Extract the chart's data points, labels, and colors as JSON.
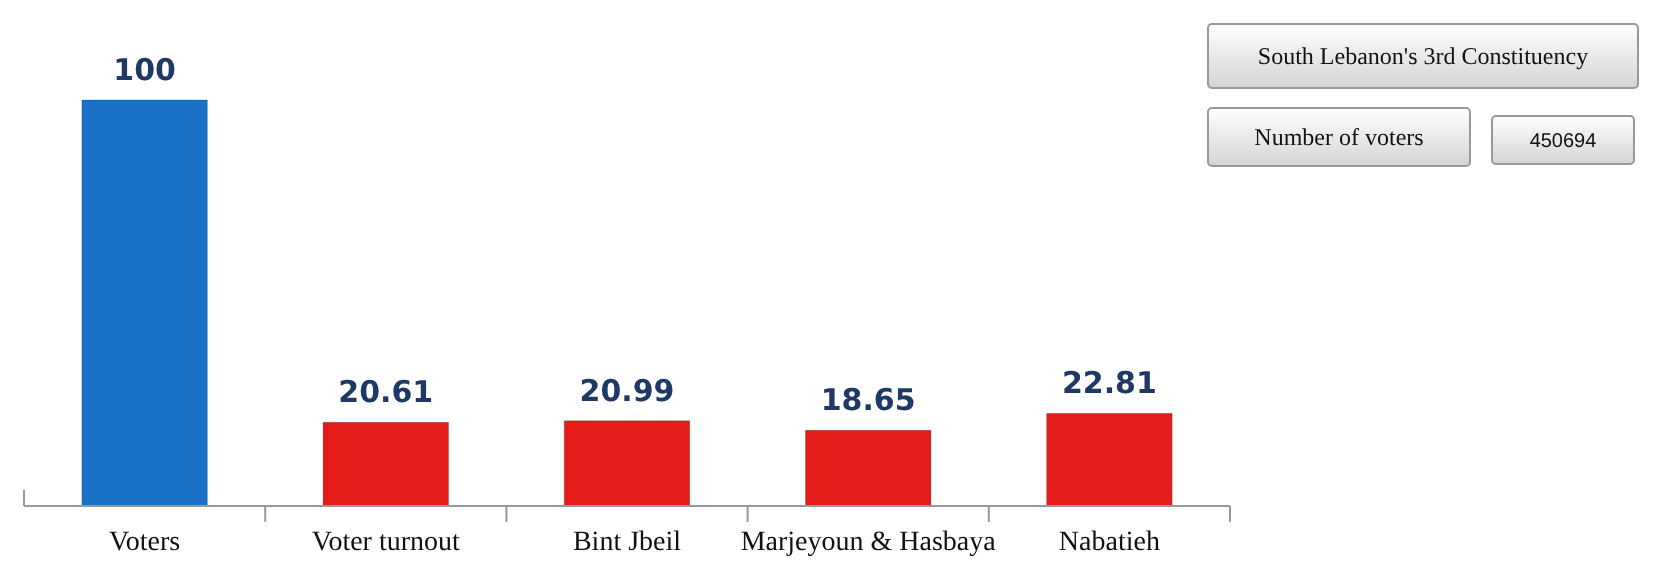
{
  "chart_data": {
    "type": "bar",
    "categories": [
      "Voters",
      "Voter turnout",
      "Bint Jbeil",
      "Marjeyoun & Hasbaya",
      "Nabatieh"
    ],
    "values": [
      100,
      20.61,
      20.99,
      18.65,
      22.81
    ],
    "colors": [
      "#1a72c6",
      "#e41c1a",
      "#e41c1a",
      "#e41c1a",
      "#e41c1a"
    ],
    "data_labels": true,
    "annotations": [
      "South Lebanon's 3rd Constituency",
      "Number of voters",
      "450694"
    ]
  }
}
